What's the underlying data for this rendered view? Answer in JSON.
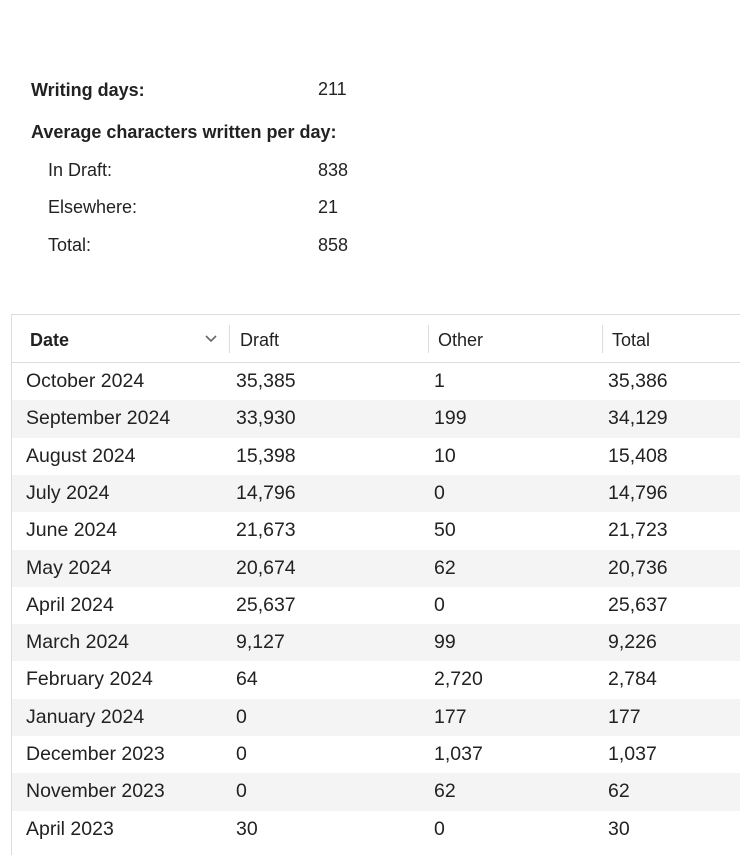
{
  "stats": {
    "writing_days": {
      "label": "Writing days:",
      "value": "211"
    },
    "average_heading": "Average characters written per day:",
    "average": [
      {
        "label": "In Draft:",
        "value": "838"
      },
      {
        "label": "Elsewhere:",
        "value": "21"
      },
      {
        "label": "Total:",
        "value": "858"
      }
    ]
  },
  "table": {
    "headers": [
      "Date",
      "Draft",
      "Other",
      "Total"
    ],
    "rows": [
      [
        "October 2024",
        "35,385",
        "1",
        "35,386"
      ],
      [
        "September 2024",
        "33,930",
        "199",
        "34,129"
      ],
      [
        "August 2024",
        "15,398",
        "10",
        "15,408"
      ],
      [
        "July 2024",
        "14,796",
        "0",
        "14,796"
      ],
      [
        "June 2024",
        "21,673",
        "50",
        "21,723"
      ],
      [
        "May 2024",
        "20,674",
        "62",
        "20,736"
      ],
      [
        "April 2024",
        "25,637",
        "0",
        "25,637"
      ],
      [
        "March 2024",
        "9,127",
        "99",
        "9,226"
      ],
      [
        "February 2024",
        "64",
        "2,720",
        "2,784"
      ],
      [
        "January 2024",
        "0",
        "177",
        "177"
      ],
      [
        "December 2023",
        "0",
        "1,037",
        "1,037"
      ],
      [
        "November 2023",
        "0",
        "62",
        "62"
      ],
      [
        "April 2023",
        "30",
        "0",
        "30"
      ]
    ]
  }
}
